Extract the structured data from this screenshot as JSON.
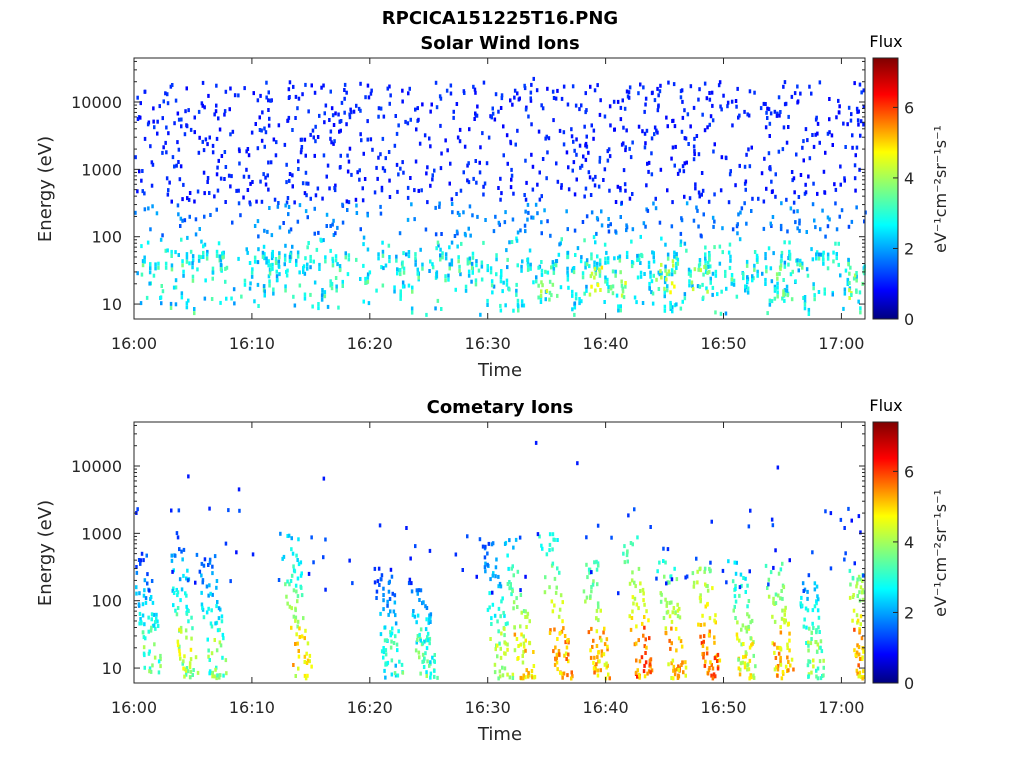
{
  "figure": {
    "title": "RPCICA151225T16.PNG"
  },
  "colorscale": {
    "name": "jet",
    "stops": [
      "#00007f",
      "#0000ff",
      "#007fff",
      "#00ffff",
      "#7fff7f",
      "#ffff00",
      "#ff7f00",
      "#ff0000",
      "#7f0000"
    ]
  },
  "chart_data": [
    {
      "type": "heatmap",
      "title": "Solar Wind Ions",
      "xlabel": "Time",
      "ylabel": "Energy (eV)",
      "xlim": [
        "16:00",
        "17:02"
      ],
      "x_ticks": [
        "16:00",
        "16:10",
        "16:20",
        "16:30",
        "16:40",
        "16:50",
        "17:00"
      ],
      "ylim": [
        6,
        45000
      ],
      "yscale": "log",
      "y_ticks": [
        "10",
        "100",
        "1000",
        "10000"
      ],
      "colorbar": {
        "label": "Flux",
        "unit": "eV⁻¹cm⁻²sr⁻¹s⁻¹",
        "range": [
          0,
          7.4
        ],
        "ticks": [
          "0",
          "2",
          "4",
          "6"
        ]
      },
      "population": "scattered counts across 6 eV–20 keV; sparse blue above 300 eV, cyan/green streaks below 100 eV, occasional yellow near 20–30 eV",
      "hotspots": [
        {
          "time": "16:35",
          "energy": 20,
          "flux": 4.5
        },
        {
          "time": "16:39",
          "energy": 20,
          "flux": 4.8
        },
        {
          "time": "16:41",
          "energy": 22,
          "flux": 4.5
        },
        {
          "time": "16:45",
          "energy": 25,
          "flux": 4.7
        },
        {
          "time": "16:48",
          "energy": 22,
          "flux": 4.3
        },
        {
          "time": "16:55",
          "energy": 20,
          "flux": 4.0
        },
        {
          "time": "17:01",
          "energy": 20,
          "flux": 4.3
        }
      ]
    },
    {
      "type": "heatmap",
      "title": "Cometary Ions",
      "xlabel": "Time",
      "ylabel": "Energy (eV)",
      "xlim": [
        "16:00",
        "17:02"
      ],
      "x_ticks": [
        "16:00",
        "16:10",
        "16:20",
        "16:30",
        "16:40",
        "16:50",
        "17:00"
      ],
      "ylim": [
        6,
        45000
      ],
      "yscale": "log",
      "y_ticks": [
        "10",
        "100",
        "1000",
        "10000"
      ],
      "colorbar": {
        "label": "Flux",
        "unit": "eV⁻¹cm⁻²sr⁻¹s⁻¹",
        "range": [
          0,
          7.4
        ],
        "ticks": [
          "0",
          "2",
          "4",
          "6"
        ]
      },
      "population": "bursty columns of ions from ~10 eV up to ~1 keV, strongest near 15–30 eV",
      "bursts": [
        {
          "time": "16:00.5",
          "top_energy": 500,
          "peak_flux": 4.2
        },
        {
          "time": "16:03.5",
          "top_energy": 600,
          "peak_flux": 4.8
        },
        {
          "time": "16:06",
          "top_energy": 500,
          "peak_flux": 4.3
        },
        {
          "time": "16:13",
          "top_energy": 1000,
          "peak_flux": 5.5
        },
        {
          "time": "16:21",
          "top_energy": 300,
          "peak_flux": 3.8
        },
        {
          "time": "16:24",
          "top_energy": 200,
          "peak_flux": 4.0
        },
        {
          "time": "16:30",
          "top_energy": 900,
          "peak_flux": 4.6
        },
        {
          "time": "16:32",
          "top_energy": 800,
          "peak_flux": 5.5
        },
        {
          "time": "16:35",
          "top_energy": 1000,
          "peak_flux": 6.0
        },
        {
          "time": "16:38.5",
          "top_energy": 400,
          "peak_flux": 5.8
        },
        {
          "time": "16:42",
          "top_energy": 900,
          "peak_flux": 6.3
        },
        {
          "time": "16:45",
          "top_energy": 400,
          "peak_flux": 5.8
        },
        {
          "time": "16:48",
          "top_energy": 300,
          "peak_flux": 6.3
        },
        {
          "time": "16:51",
          "top_energy": 400,
          "peak_flux": 5.2
        },
        {
          "time": "16:54",
          "top_energy": 500,
          "peak_flux": 5.8
        },
        {
          "time": "16:57",
          "top_energy": 200,
          "peak_flux": 4.5
        },
        {
          "time": "17:01",
          "top_energy": 300,
          "peak_flux": 6.0
        }
      ]
    }
  ]
}
